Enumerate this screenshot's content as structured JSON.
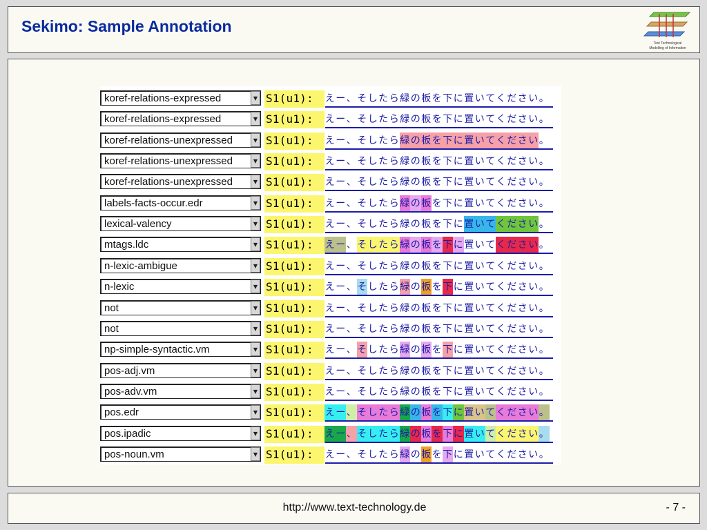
{
  "header": {
    "title": "Sekimo: Sample Annotation",
    "logo_lines": [
      "Text Technological",
      "Modelling of Information"
    ]
  },
  "footer": {
    "url": "http://www.text-technology.de",
    "page": "- 7 -"
  },
  "prefix": "S1(u1):",
  "sentence": "えー、そしたら緑の板を下に置いてください。",
  "colors": {
    "yellow": "#fbf66e",
    "pink": "#f6a0a8",
    "magenta": "#e87ad8",
    "lavender": "#e6a8ee",
    "blue": "#37b6ea",
    "cyan": "#36eef0",
    "green": "#6fc63c",
    "darkgreen": "#18a84a",
    "red": "#e8284a",
    "orange": "#f0a028",
    "olive": "#bcc08a",
    "lightblue": "#a8dcf0",
    "lightgreen": "#d0eea8",
    "tan": "#d8c48a",
    "purple": "#b060c0"
  },
  "rows": [
    {
      "label": "koref-relations-expressed",
      "hl": []
    },
    {
      "label": "koref-relations-expressed",
      "hl": []
    },
    {
      "label": "koref-relations-unexpressed",
      "hl": [
        [
          7,
          19,
          "pink"
        ]
      ]
    },
    {
      "label": "koref-relations-unexpressed",
      "hl": []
    },
    {
      "label": "koref-relations-unexpressed",
      "hl": []
    },
    {
      "label": "labels-facts-occur.edr",
      "hl": [
        [
          7,
          7,
          "magenta"
        ],
        [
          8,
          8,
          "lavender"
        ],
        [
          9,
          9,
          "magenta"
        ]
      ]
    },
    {
      "label": "lexical-valency",
      "hl": [
        [
          13,
          15,
          "blue"
        ],
        [
          16,
          19,
          "green"
        ]
      ]
    },
    {
      "label": "mtags.ldc",
      "hl": [
        [
          0,
          1,
          "olive"
        ],
        [
          3,
          6,
          "yellow"
        ],
        [
          7,
          7,
          "magenta"
        ],
        [
          8,
          8,
          "lavender"
        ],
        [
          9,
          9,
          "magenta"
        ],
        [
          10,
          10,
          "lavender"
        ],
        [
          11,
          11,
          "red"
        ],
        [
          12,
          12,
          "lavender"
        ],
        [
          16,
          19,
          "red"
        ]
      ]
    },
    {
      "label": "n-lexic-ambigue",
      "hl": []
    },
    {
      "label": "n-lexic",
      "hl": [
        [
          3,
          3,
          "lightblue"
        ],
        [
          7,
          7,
          "pink"
        ],
        [
          9,
          9,
          "orange"
        ],
        [
          11,
          11,
          "red"
        ]
      ]
    },
    {
      "label": "not",
      "hl": []
    },
    {
      "label": "not",
      "hl": []
    },
    {
      "label": "np-simple-syntactic.vm",
      "hl": [
        [
          3,
          3,
          "pink"
        ],
        [
          7,
          7,
          "lavender"
        ],
        [
          9,
          9,
          "lavender"
        ],
        [
          11,
          11,
          "pink"
        ]
      ]
    },
    {
      "label": "pos-adj.vm",
      "hl": []
    },
    {
      "label": "pos-adv.vm",
      "hl": []
    },
    {
      "label": "pos.edr",
      "hl": [
        [
          0,
          1,
          "cyan"
        ],
        [
          2,
          2,
          "lightgreen"
        ],
        [
          3,
          6,
          "magenta"
        ],
        [
          7,
          7,
          "darkgreen"
        ],
        [
          8,
          8,
          "blue"
        ],
        [
          9,
          9,
          "magenta"
        ],
        [
          10,
          10,
          "blue"
        ],
        [
          11,
          11,
          "cyan"
        ],
        [
          12,
          12,
          "green"
        ],
        [
          13,
          14,
          "tan"
        ],
        [
          15,
          15,
          "olive"
        ],
        [
          16,
          19,
          "magenta"
        ],
        [
          20,
          20,
          "olive"
        ]
      ]
    },
    {
      "label": "pos.ipadic",
      "hl": [
        [
          0,
          1,
          "darkgreen"
        ],
        [
          2,
          2,
          "pink"
        ],
        [
          3,
          6,
          "cyan"
        ],
        [
          7,
          7,
          "darkgreen"
        ],
        [
          8,
          8,
          "red"
        ],
        [
          9,
          9,
          "magenta"
        ],
        [
          10,
          10,
          "red"
        ],
        [
          11,
          11,
          "magenta"
        ],
        [
          12,
          12,
          "red"
        ],
        [
          13,
          14,
          "cyan"
        ],
        [
          15,
          15,
          "lightgreen"
        ],
        [
          16,
          19,
          "yellow"
        ],
        [
          20,
          20,
          "lightblue"
        ]
      ]
    },
    {
      "label": "pos-noun.vm",
      "hl": [
        [
          7,
          7,
          "lavender"
        ],
        [
          9,
          9,
          "orange"
        ],
        [
          11,
          11,
          "lavender"
        ]
      ]
    }
  ]
}
